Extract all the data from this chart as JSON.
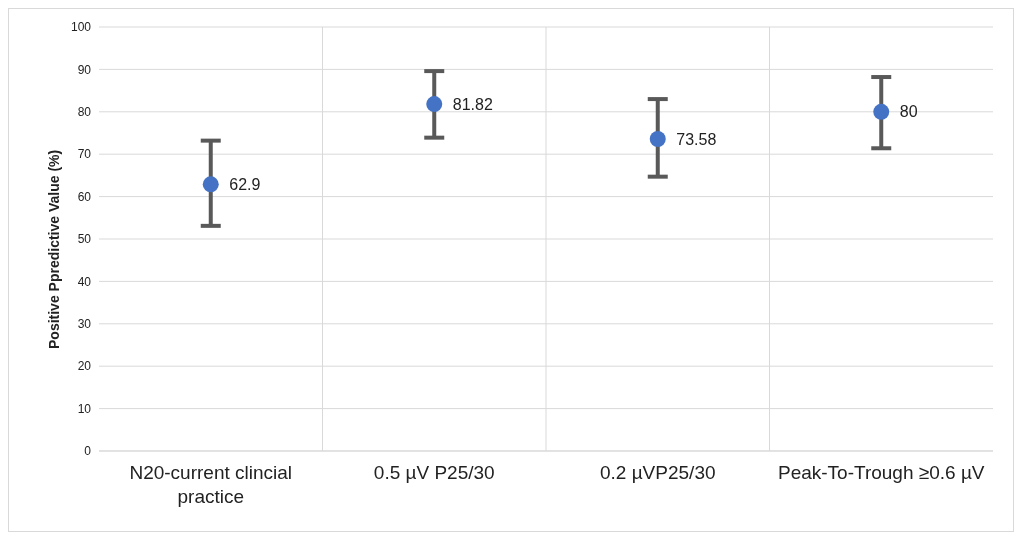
{
  "chart_data": {
    "type": "scatter",
    "ylabel": "Positive Ppredictive Value (%)",
    "categories": [
      "N20-current clincial practice",
      "0.5 µV P25/30",
      "0.2 µVP25/30",
      "Peak-To-Trough ≥0.6 µV"
    ],
    "series": [
      {
        "color": "#4472c4",
        "values": [
          62.9,
          81.82,
          73.58,
          80
        ],
        "errors": [
          [
            53.1,
            73.2
          ],
          [
            73.9,
            89.6
          ],
          [
            64.7,
            83.0
          ],
          [
            71.4,
            88.2
          ]
        ]
      }
    ],
    "data_labels": true,
    "marker": "circle",
    "ylim": [
      0,
      100
    ],
    "yticks": [
      0,
      10,
      20,
      30,
      40,
      50,
      60,
      70,
      80,
      90,
      100
    ],
    "grid": true
  }
}
